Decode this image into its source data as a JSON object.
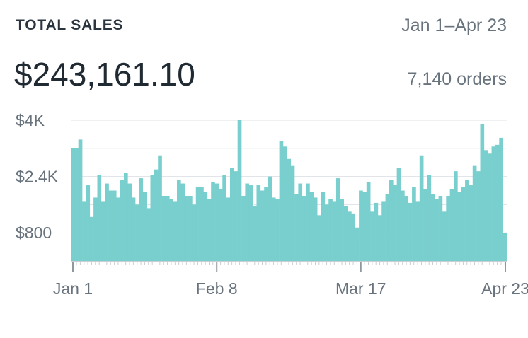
{
  "header": {
    "title": "TOTAL SALES",
    "date_range": "Jan 1–Apr 23",
    "total": "$243,161.10",
    "orders": "7,140 orders"
  },
  "chart_data": {
    "type": "bar",
    "color": "#79cfcd",
    "ylim": [
      0,
      4000
    ],
    "y_ticks": [
      {
        "value": 4000,
        "label": "$4K"
      },
      {
        "value": 2400,
        "label": "$2.4K"
      },
      {
        "value": 800,
        "label": "$800"
      }
    ],
    "x_labels": [
      {
        "index": 0,
        "label": "Jan 1"
      },
      {
        "index": 38,
        "label": "Feb 8"
      },
      {
        "index": 76,
        "label": "Mar 17"
      },
      {
        "index": 112,
        "label": "Apr 23"
      }
    ],
    "values": [
      3200,
      3200,
      3450,
      1700,
      2150,
      1250,
      1800,
      2450,
      1700,
      2200,
      2000,
      2000,
      1800,
      2300,
      2500,
      2200,
      1800,
      1600,
      2350,
      1950,
      1500,
      2450,
      2600,
      3000,
      1850,
      1850,
      1750,
      1700,
      2300,
      2200,
      1850,
      1850,
      1600,
      2100,
      2100,
      1950,
      1750,
      2250,
      2200,
      2050,
      2450,
      1800,
      2650,
      2550,
      4000,
      1850,
      2200,
      2150,
      1550,
      2150,
      2000,
      2100,
      2400,
      1800,
      1750,
      3400,
      3250,
      2900,
      2700,
      1900,
      2200,
      1850,
      2200,
      1950,
      1800,
      1300,
      1950,
      1600,
      1750,
      1700,
      2350,
      1750,
      1550,
      1400,
      1350,
      950,
      2000,
      1950,
      2250,
      1400,
      1650,
      1300,
      1700,
      1900,
      2300,
      2150,
      2650,
      2000,
      1850,
      1650,
      2100,
      1700,
      3000,
      2050,
      2450,
      1900,
      1750,
      1850,
      1400,
      1850,
      2050,
      2550,
      1950,
      2100,
      2300,
      2150,
      2700,
      2550,
      3900,
      3150,
      3050,
      3250,
      3300,
      3500,
      800
    ]
  }
}
